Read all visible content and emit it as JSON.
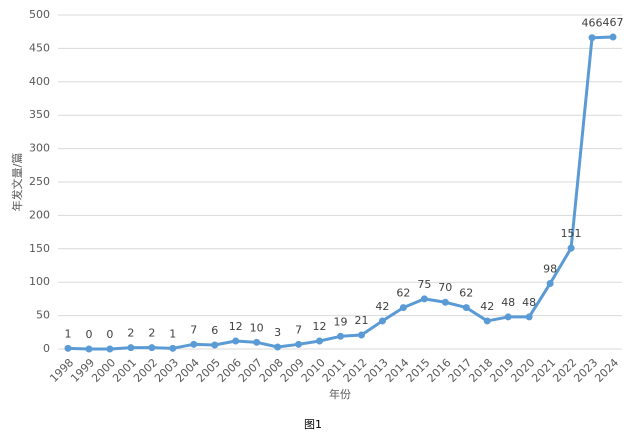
{
  "chart_data": {
    "type": "line",
    "y_label": "年发文量/篇",
    "x_label": "年份",
    "caption": "图1",
    "categories": [
      "1998",
      "1999",
      "2000",
      "2001",
      "2002",
      "2003",
      "2004",
      "2005",
      "2006",
      "2007",
      "2008",
      "2009",
      "2010",
      "2011",
      "2012",
      "2013",
      "2014",
      "2015",
      "2016",
      "2017",
      "2018",
      "2019",
      "2020",
      "2021",
      "2022",
      "2023",
      "2024"
    ],
    "series": [
      {
        "name": "年发文量",
        "color": "#5b9bd5",
        "values": [
          1,
          0,
          0,
          2,
          2,
          1,
          7,
          6,
          12,
          10,
          3,
          7,
          12,
          19,
          21,
          42,
          62,
          75,
          70,
          62,
          42,
          48,
          48,
          98,
          151,
          466,
          467
        ]
      }
    ],
    "ylim": [
      0,
      500
    ],
    "yticks": [
      0,
      50,
      100,
      150,
      200,
      250,
      300,
      350,
      400,
      450,
      500
    ],
    "grid": true
  }
}
